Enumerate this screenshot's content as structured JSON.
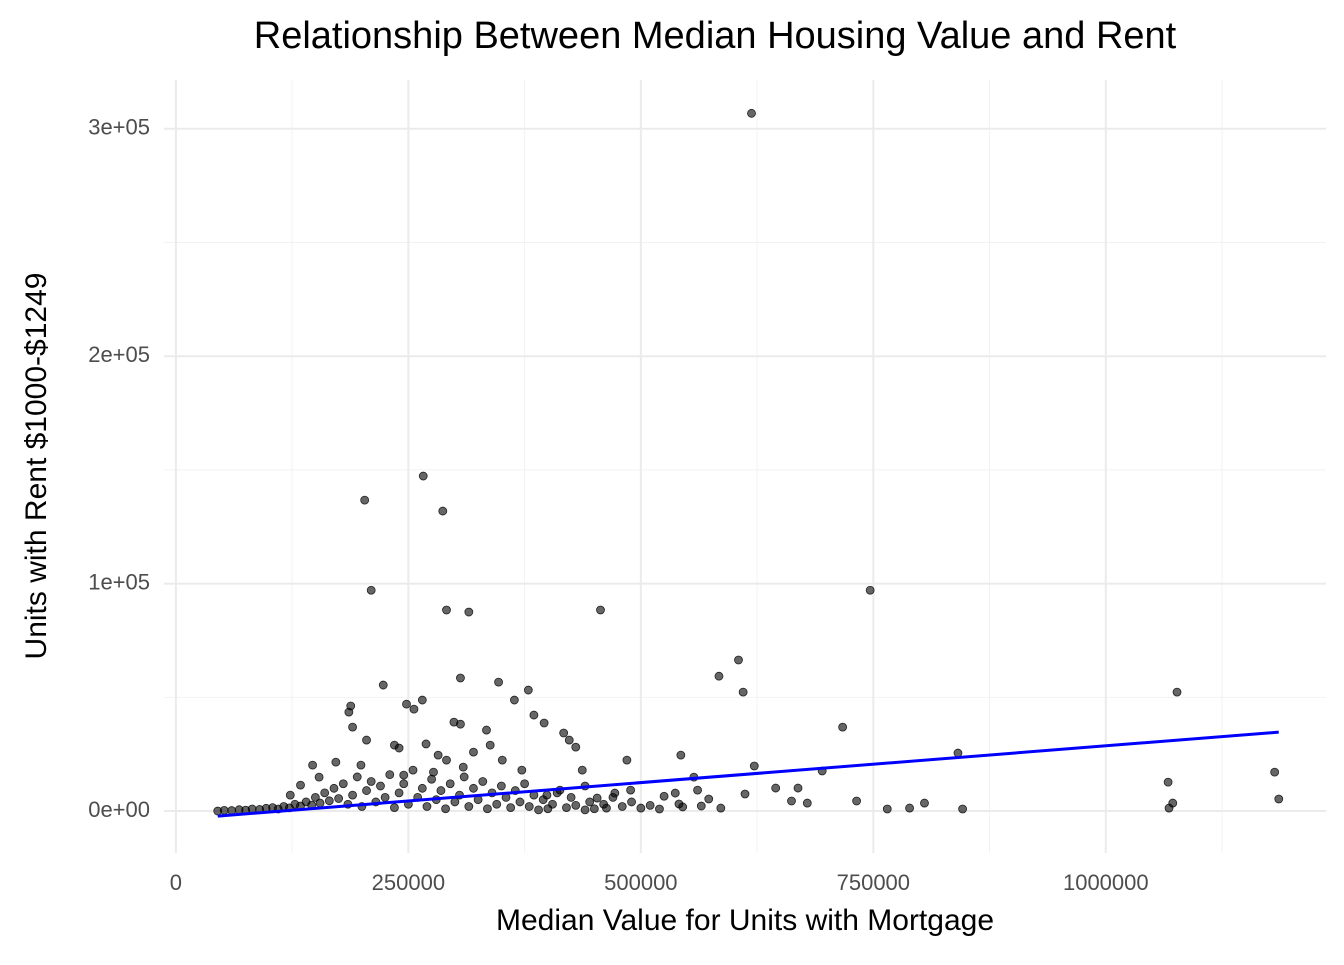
{
  "chart_data": {
    "type": "scatter",
    "title": "Relationship Between Median Housing Value and Rent",
    "x_label": "Median Value for Units with Mortgage",
    "y_label": "Units with Rent $1000-$1249",
    "xlim": [
      -12800,
      1236800
    ],
    "ylim": [
      -18450,
      321450
    ],
    "xticks": [
      0,
      250000,
      500000,
      750000,
      1000000
    ],
    "yticks": [
      {
        "value": 0,
        "label": "0e+00"
      },
      {
        "value": 100000,
        "label": "1e+05"
      },
      {
        "value": 200000,
        "label": "2e+05"
      },
      {
        "value": 300000,
        "label": "3e+05"
      }
    ],
    "grid": true,
    "color": "#000000",
    "x": [
      619000,
      266000,
      203000,
      287000,
      210000,
      746600,
      291000,
      315000,
      456600,
      1076600,
      605000,
      610000,
      584000,
      717000,
      306000,
      223000,
      347000,
      379000,
      364000,
      265000,
      188000,
      248000,
      256000,
      186000,
      190000,
      299000,
      306000,
      385000,
      396000,
      334000,
      417000,
      423000,
      430000,
      485000,
      543000,
      841000,
      622000,
      1067000,
      1181600,
      1186000,
      1072000,
      1068000,
      846000,
      805000,
      789000,
      765000,
      732000,
      679000,
      662000,
      669000,
      645000,
      695000,
      612000,
      586000,
      573000,
      561000,
      557000,
      537000,
      541000,
      520000,
      500000,
      489000,
      472000,
      463000,
      453000,
      440000,
      437000,
      413000,
      399000,
      372000,
      351000,
      338000,
      320000,
      309000,
      291000,
      277000,
      269000,
      282000,
      240000,
      245000,
      235000,
      205000,
      199000,
      172000,
      147000,
      154000,
      134000,
      123000,
      45000,
      52000,
      60000,
      68000,
      75000,
      82000,
      90000,
      97000,
      104000,
      110000,
      116000,
      122000,
      128000,
      134000,
      140000,
      146000,
      150000,
      155000,
      160000,
      165000,
      170000,
      175000,
      180000,
      185000,
      190000,
      195000,
      200000,
      205000,
      210000,
      215000,
      220000,
      225000,
      230000,
      235000,
      240000,
      245000,
      250000,
      255000,
      260000,
      265000,
      270000,
      275000,
      280000,
      285000,
      290000,
      295000,
      300000,
      305000,
      310000,
      315000,
      320000,
      325000,
      330000,
      335000,
      340000,
      345000,
      350000,
      355000,
      360000,
      365000,
      370000,
      375000,
      380000,
      385000,
      390000,
      395000,
      400000,
      405000,
      410000,
      420000,
      425000,
      430000,
      440000,
      445000,
      450000,
      460000,
      470000,
      480000,
      490000,
      510000,
      525000,
      545000,
      565000
    ],
    "y": [
      306800,
      147300,
      136700,
      131900,
      97100,
      97100,
      88400,
      87500,
      88400,
      52300,
      66400,
      52300,
      59300,
      36900,
      58500,
      55400,
      56700,
      53200,
      48800,
      48800,
      46200,
      47000,
      44800,
      43500,
      36900,
      39100,
      38200,
      42200,
      38700,
      35600,
      34300,
      31200,
      28100,
      22400,
      24600,
      25500,
      19800,
      12700,
      17100,
      5300,
      3500,
      1300,
      900,
      3500,
      1300,
      900,
      4400,
      3500,
      4400,
      10100,
      10100,
      17600,
      7500,
      1300,
      5300,
      9200,
      14900,
      7900,
      3100,
      900,
      1300,
      9200,
      7900,
      1300,
      5700,
      11000,
      18000,
      9200,
      7000,
      18000,
      22400,
      29000,
      25900,
      19300,
      22400,
      17100,
      29500,
      24600,
      27700,
      15800,
      29000,
      31200,
      20200,
      21500,
      20200,
      14900,
      11400,
      7000,
      0,
      300,
      200,
      600,
      400,
      900,
      700,
      1200,
      1500,
      900,
      2000,
      1400,
      3000,
      2200,
      4000,
      2600,
      6000,
      3500,
      8000,
      4500,
      10000,
      5500,
      12000,
      3000,
      7000,
      15000,
      2000,
      9000,
      13000,
      4000,
      11000,
      6000,
      16000,
      1500,
      8000,
      12000,
      3000,
      18000,
      6000,
      10000,
      2000,
      14000,
      5000,
      9000,
      1000,
      12000,
      4000,
      7000,
      15000,
      2000,
      10000,
      5000,
      13000,
      1000,
      8000,
      3000,
      11000,
      6000,
      1500,
      9000,
      4000,
      12000,
      2000,
      7000,
      500,
      5000,
      1000,
      3000,
      8000,
      1500,
      6000,
      2500,
      500,
      4000,
      1000,
      3000,
      6000,
      2000,
      4000,
      2500,
      6500,
      1800,
      2200
    ],
    "trend_line": {
      "color": "#0000ff",
      "x": [
        45000,
        1186000
      ],
      "y": [
        -2213,
        34698
      ]
    }
  }
}
